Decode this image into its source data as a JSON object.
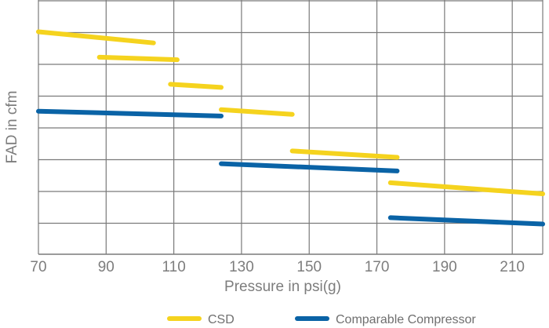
{
  "chart_data": {
    "type": "line",
    "xlabel": "Pressure in psi(g)",
    "ylabel": "FAD in cfm",
    "xlim": [
      70,
      219
    ],
    "ylim": [
      0,
      8
    ],
    "x_ticks": [
      70,
      90,
      110,
      130,
      150,
      170,
      190,
      210
    ],
    "y_gridlines": [
      1,
      2,
      3,
      4,
      5,
      6,
      7,
      8
    ],
    "grid": true,
    "legend_position": "bottom-center",
    "series": [
      {
        "name": "CSD",
        "color": "#f5d31e",
        "segments": [
          [
            [
              70,
              7.0
            ],
            [
              104,
              6.65
            ]
          ],
          [
            [
              88,
              6.2
            ],
            [
              111,
              6.12
            ]
          ],
          [
            [
              109,
              5.35
            ],
            [
              124,
              5.25
            ]
          ],
          [
            [
              124,
              4.55
            ],
            [
              145,
              4.4
            ]
          ],
          [
            [
              145,
              3.25
            ],
            [
              176,
              3.05
            ]
          ],
          [
            [
              174,
              2.25
            ],
            [
              219,
              1.9
            ]
          ]
        ]
      },
      {
        "name": "Comparable Compressor",
        "color": "#0a63a6",
        "segments": [
          [
            [
              70,
              4.5
            ],
            [
              124,
              4.35
            ]
          ],
          [
            [
              124,
              2.85
            ],
            [
              176,
              2.62
            ]
          ],
          [
            [
              174,
              1.15
            ],
            [
              219,
              0.95
            ]
          ]
        ]
      }
    ]
  }
}
